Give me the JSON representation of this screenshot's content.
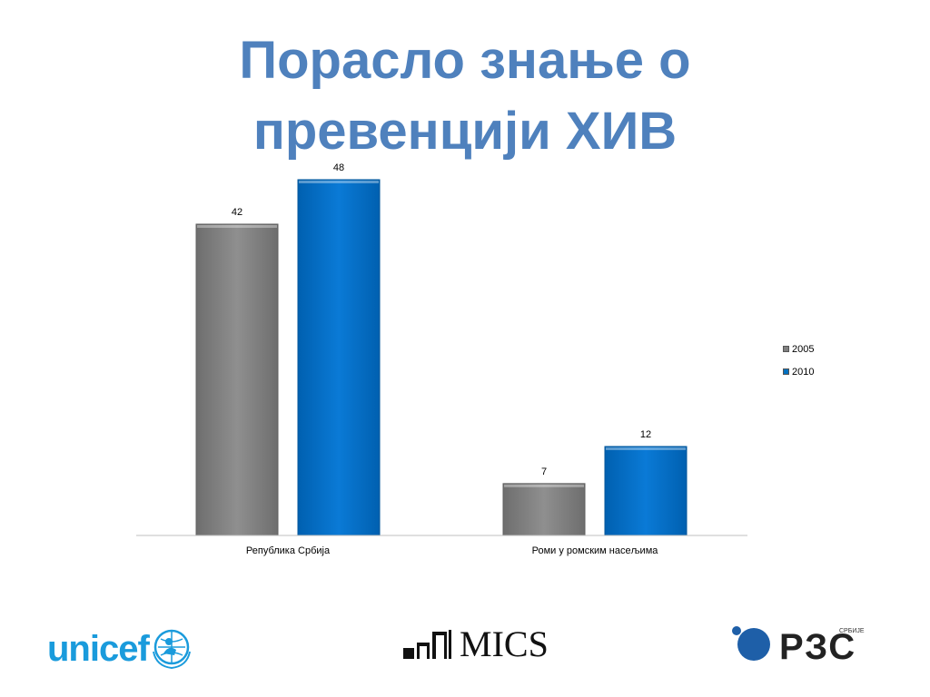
{
  "title": {
    "line1": "Порасло знање о",
    "line2": "превенцији ХИВ"
  },
  "chart_data": {
    "type": "bar",
    "categories": [
      "Република Србија",
      "Роми у ромским насељима"
    ],
    "series": [
      {
        "name": "2005",
        "values": [
          42,
          7
        ],
        "color": "#808080"
      },
      {
        "name": "2010",
        "values": [
          48,
          12
        ],
        "color": "#0070c0"
      }
    ],
    "ylim": [
      0,
      48
    ],
    "data_labels": true,
    "grid": false,
    "legend_position": "right"
  },
  "logos": {
    "unicef": "unicef",
    "mics": "MICS",
    "rzs_main": "РЗС",
    "rzs_small": "СРБИЈЕ"
  }
}
